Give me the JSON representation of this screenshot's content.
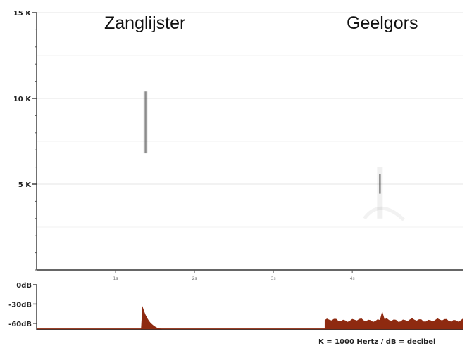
{
  "chart_data": [
    {
      "type": "heatmap",
      "y_ticks": [
        "15 K",
        "10 K",
        "5 K"
      ],
      "y_values": [
        15000,
        10000,
        5000
      ],
      "ylim": [
        0,
        15000
      ],
      "x_ticks": [
        "1s",
        "2s",
        "3s",
        "4s"
      ],
      "x_values": [
        1,
        2,
        3,
        4
      ],
      "xlim": [
        0,
        5.4
      ],
      "annotations": [
        "Zanglijster",
        "Geelgors"
      ],
      "grid": true,
      "marks": [
        {
          "name": "Zanglijster",
          "t": 1.38,
          "f_low": 6800,
          "f_high": 10400
        },
        {
          "name": "Geelgors",
          "t": 4.35,
          "f_low": 3000,
          "f_high": 6000
        }
      ]
    },
    {
      "type": "area",
      "y_ticks": [
        "0dB",
        "-30dB",
        "-60dB"
      ],
      "y_values": [
        0,
        -30,
        -60
      ],
      "ylim": [
        -70,
        0
      ],
      "color": "#8e2a10",
      "bursts": [
        {
          "t_start": 1.34,
          "t_end": 1.62,
          "peak_db": -33
        },
        {
          "t_start": 3.65,
          "t_end": 5.4,
          "level_db": -55,
          "spike_t": 4.38,
          "spike_db": -41
        }
      ]
    }
  ],
  "caption": "K = 1000 Hertz / dB = decibel"
}
